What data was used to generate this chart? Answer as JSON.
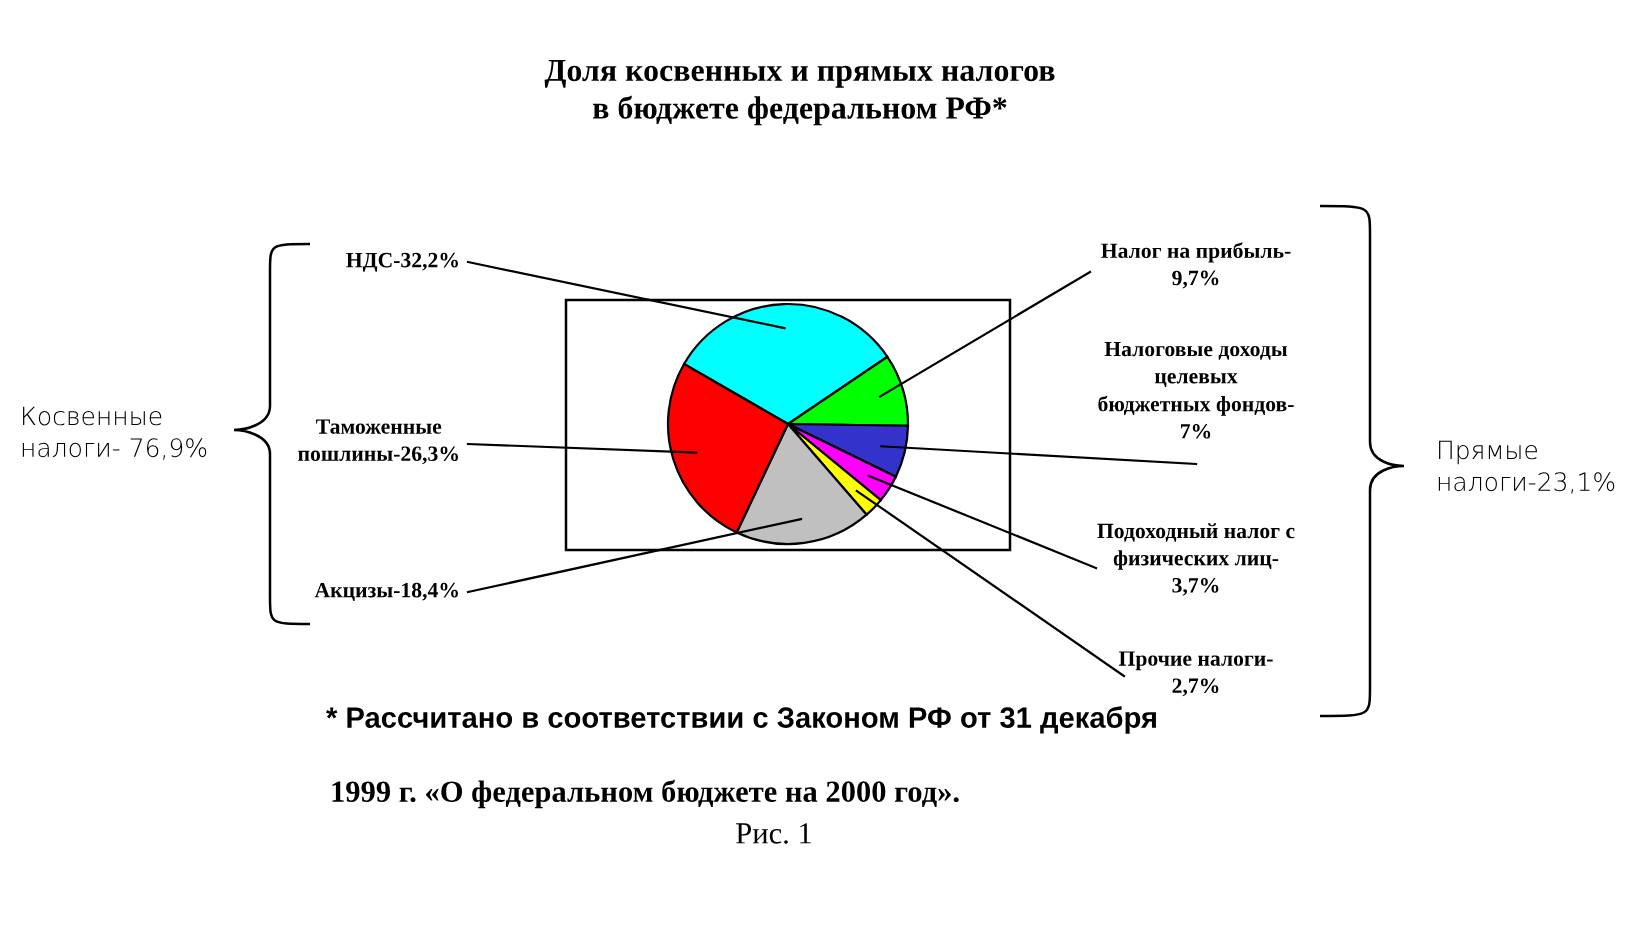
{
  "chart_data": {
    "type": "pie",
    "title": "Доля косвенных и прямых налогов\nв бюджете федеральном РФ*",
    "categories": [
      "НДС-32,2%",
      "Налог на прибыль-\n9,7%",
      "Налоговые доходы\nцелевых\nбюджетных фондов-\n7%",
      "Подоходный налог с\nфизических лиц-\n3,7%",
      "Прочие налоги-\n2,7%",
      "Акцизы-18,4%",
      "Таможенные\nпошлины-26,3%"
    ],
    "values": [
      32.2,
      9.7,
      7,
      3.7,
      2.7,
      18.4,
      26.3
    ],
    "colors": [
      "#00ffff",
      "#00ff00",
      "#3333cc",
      "#ff00ff",
      "#ffff00",
      "#c0c0c0",
      "#ff0000"
    ],
    "annotations": [
      "Косвенные\nналоги- 76,9%",
      "Прямые\nналоги-23,1%",
      "* Рассчитано в соответствии с Законом РФ от 31 декабря",
      "1999 г. «О федеральном бюджете на 2000 год».",
      "Рис. 1"
    ]
  }
}
